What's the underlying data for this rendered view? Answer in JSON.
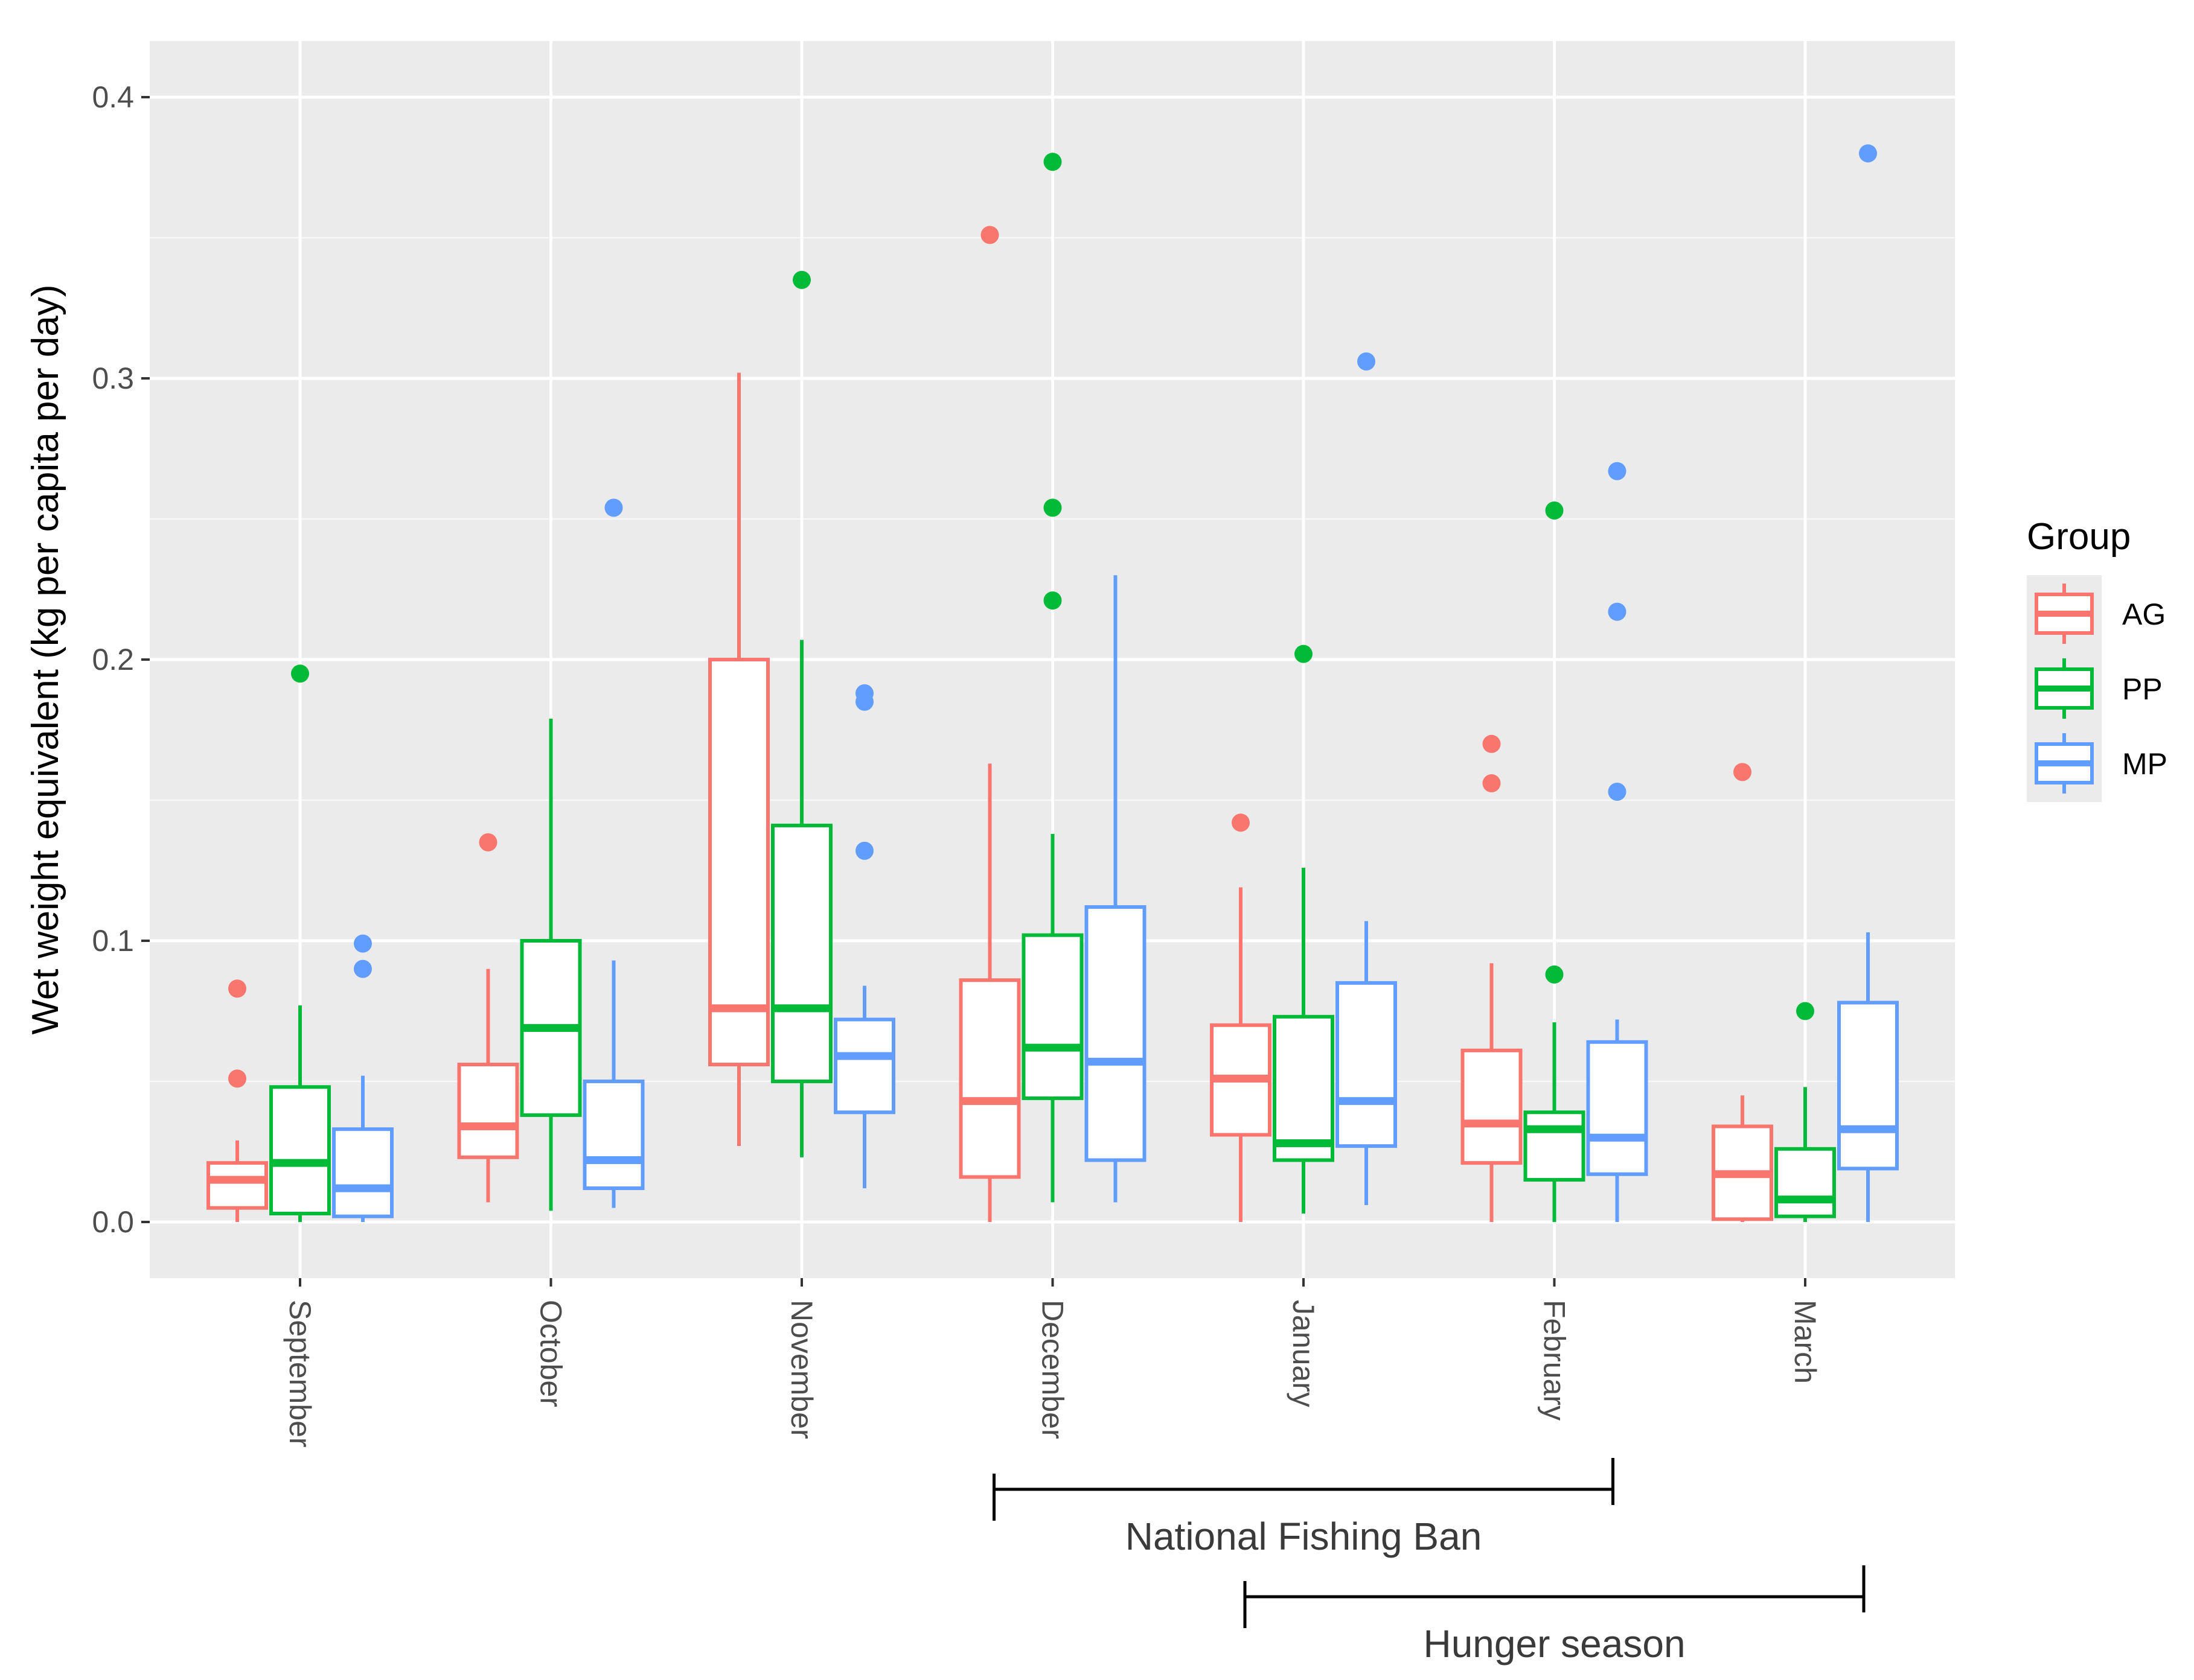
{
  "chart_data": {
    "type": "boxplot",
    "ylabel": "Wet weight equivalent (kg per capita per day)",
    "xlabel": "",
    "ylim": [
      -0.02,
      0.42
    ],
    "yticks": [
      0.0,
      0.1,
      0.2,
      0.3,
      0.4
    ],
    "ytick_labels": [
      "0.0",
      "0.1",
      "0.2",
      "0.3",
      "0.4"
    ],
    "categories": [
      "September",
      "October",
      "November",
      "December",
      "January",
      "February",
      "March"
    ],
    "legend": {
      "title": "Group",
      "position": "right",
      "entries": [
        {
          "name": "AG",
          "color": "#F8766D"
        },
        {
          "name": "PP",
          "color": "#00BA38"
        },
        {
          "name": "MP",
          "color": "#619CFF"
        }
      ]
    },
    "series": [
      {
        "name": "AG",
        "color": "#F8766D",
        "boxes": [
          {
            "min": 0.0,
            "q1": 0.005,
            "median": 0.015,
            "q3": 0.021,
            "max": 0.029,
            "outliers": [
              0.083,
              0.051
            ]
          },
          {
            "min": 0.007,
            "q1": 0.023,
            "median": 0.034,
            "q3": 0.056,
            "max": 0.09,
            "outliers": [
              0.135
            ]
          },
          {
            "min": 0.027,
            "q1": 0.056,
            "median": 0.076,
            "q3": 0.2,
            "max": 0.302,
            "outliers": []
          },
          {
            "min": 0.0,
            "q1": 0.016,
            "median": 0.043,
            "q3": 0.086,
            "max": 0.163,
            "outliers": [
              0.351
            ]
          },
          {
            "min": 0.0,
            "q1": 0.031,
            "median": 0.051,
            "q3": 0.07,
            "max": 0.119,
            "outliers": [
              0.142
            ]
          },
          {
            "min": 0.0,
            "q1": 0.021,
            "median": 0.035,
            "q3": 0.061,
            "max": 0.092,
            "outliers": [
              0.17,
              0.156
            ]
          },
          {
            "min": 0.0,
            "q1": 0.001,
            "median": 0.017,
            "q3": 0.034,
            "max": 0.045,
            "outliers": [
              0.16
            ]
          }
        ]
      },
      {
        "name": "PP",
        "color": "#00BA38",
        "boxes": [
          {
            "min": 0.0,
            "q1": 0.003,
            "median": 0.021,
            "q3": 0.048,
            "max": 0.077,
            "outliers": [
              0.195
            ]
          },
          {
            "min": 0.004,
            "q1": 0.038,
            "median": 0.069,
            "q3": 0.1,
            "max": 0.179,
            "outliers": []
          },
          {
            "min": 0.023,
            "q1": 0.05,
            "median": 0.076,
            "q3": 0.141,
            "max": 0.207,
            "outliers": [
              0.335
            ]
          },
          {
            "min": 0.007,
            "q1": 0.044,
            "median": 0.062,
            "q3": 0.102,
            "max": 0.138,
            "outliers": [
              0.377,
              0.254,
              0.221
            ]
          },
          {
            "min": 0.003,
            "q1": 0.022,
            "median": 0.028,
            "q3": 0.073,
            "max": 0.126,
            "outliers": [
              0.202
            ]
          },
          {
            "min": 0.0,
            "q1": 0.015,
            "median": 0.033,
            "q3": 0.039,
            "max": 0.071,
            "outliers": [
              0.253,
              0.088
            ]
          },
          {
            "min": 0.0,
            "q1": 0.002,
            "median": 0.008,
            "q3": 0.026,
            "max": 0.048,
            "outliers": [
              0.075
            ]
          }
        ]
      },
      {
        "name": "MP",
        "color": "#619CFF",
        "boxes": [
          {
            "min": 0.0,
            "q1": 0.002,
            "median": 0.012,
            "q3": 0.033,
            "max": 0.052,
            "outliers": [
              0.099,
              0.09
            ]
          },
          {
            "min": 0.005,
            "q1": 0.012,
            "median": 0.022,
            "q3": 0.05,
            "max": 0.093,
            "outliers": [
              0.254
            ]
          },
          {
            "min": 0.012,
            "q1": 0.039,
            "median": 0.059,
            "q3": 0.072,
            "max": 0.084,
            "outliers": [
              0.188,
              0.185,
              0.132
            ]
          },
          {
            "min": 0.007,
            "q1": 0.022,
            "median": 0.057,
            "q3": 0.112,
            "max": 0.23,
            "outliers": []
          },
          {
            "min": 0.006,
            "q1": 0.027,
            "median": 0.043,
            "q3": 0.085,
            "max": 0.107,
            "outliers": [
              0.306
            ]
          },
          {
            "min": 0.0,
            "q1": 0.017,
            "median": 0.03,
            "q3": 0.064,
            "max": 0.072,
            "outliers": [
              0.267,
              0.217,
              0.153
            ]
          },
          {
            "min": 0.0,
            "q1": 0.019,
            "median": 0.033,
            "q3": 0.078,
            "max": 0.103,
            "outliers": [
              0.38
            ]
          }
        ]
      }
    ],
    "annotations": [
      {
        "label": "National Fishing Ban",
        "from": "December",
        "to": "February",
        "row": 1
      },
      {
        "label": "Hunger season",
        "from": "January",
        "to": "March",
        "row": 2
      }
    ]
  }
}
